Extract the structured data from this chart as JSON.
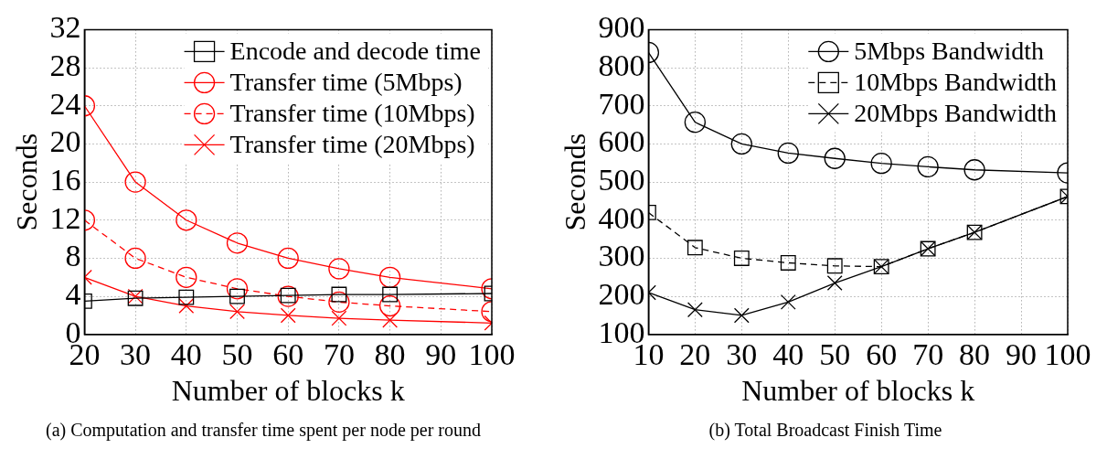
{
  "chart_data": [
    {
      "type": "line",
      "xlabel": "Number of blocks k",
      "ylabel": "Seconds",
      "x": [
        20,
        30,
        40,
        50,
        60,
        70,
        80,
        100
      ],
      "xlim": [
        20,
        100
      ],
      "xticks": [
        20,
        30,
        40,
        50,
        60,
        70,
        80,
        90,
        100
      ],
      "ylim": [
        0,
        32
      ],
      "yticks": [
        0,
        4,
        8,
        12,
        16,
        20,
        24,
        28,
        32
      ],
      "grid": true,
      "legend": "top right",
      "annotations": [
        "(a) Computation and transfer time spent per node per round"
      ],
      "series": [
        {
          "name": "Encode and decode time",
          "color": "#000000",
          "marker": "square",
          "line_style": "solid",
          "values": [
            3.5,
            3.8,
            3.9,
            4.0,
            4.1,
            4.2,
            4.2,
            4.3
          ]
        },
        {
          "name": "Transfer time (5Mbps)",
          "color": "#ff0000",
          "marker": "circle",
          "line_style": "solid",
          "values": [
            24,
            16,
            12,
            9.6,
            8,
            6.9,
            6,
            4.8
          ]
        },
        {
          "name": "Transfer time (10Mbps)",
          "color": "#ff0000",
          "marker": "circle",
          "line_style": "dashed",
          "values": [
            12,
            8,
            6,
            4.8,
            4,
            3.4,
            3,
            2.4
          ]
        },
        {
          "name": "Transfer time (20Mbps)",
          "color": "#ff0000",
          "marker": "cross",
          "line_style": "solid",
          "values": [
            6,
            4,
            3,
            2.4,
            2,
            1.7,
            1.5,
            1.2
          ]
        }
      ]
    },
    {
      "type": "line",
      "xlabel": "Number of blocks k",
      "ylabel": "Seconds",
      "x": [
        10,
        20,
        30,
        40,
        50,
        60,
        70,
        80,
        100
      ],
      "xlim": [
        10,
        100
      ],
      "xticks": [
        10,
        20,
        30,
        40,
        50,
        60,
        70,
        80,
        90,
        100
      ],
      "ylim": [
        100,
        900
      ],
      "yticks": [
        100,
        200,
        300,
        400,
        500,
        600,
        700,
        800,
        900
      ],
      "grid": true,
      "legend": "top right",
      "annotations": [
        "(b) Total Broadcast Finish Time"
      ],
      "series": [
        {
          "name": "5Mbps Bandwidth",
          "color": "#000000",
          "marker": "circle",
          "line_style": "solid",
          "values": [
            840,
            657,
            600,
            576,
            562,
            549,
            540,
            532,
            524
          ]
        },
        {
          "name": "10Mbps Bandwidth",
          "color": "#000000",
          "marker": "square",
          "line_style": "dashed",
          "values": [
            420,
            328,
            300,
            288,
            280,
            278,
            325,
            368,
            462
          ]
        },
        {
          "name": "20Mbps Bandwidth",
          "color": "#000000",
          "marker": "cross",
          "line_style": "solid",
          "values": [
            210,
            165,
            150,
            185,
            235,
            278,
            325,
            368,
            462
          ]
        }
      ]
    }
  ]
}
